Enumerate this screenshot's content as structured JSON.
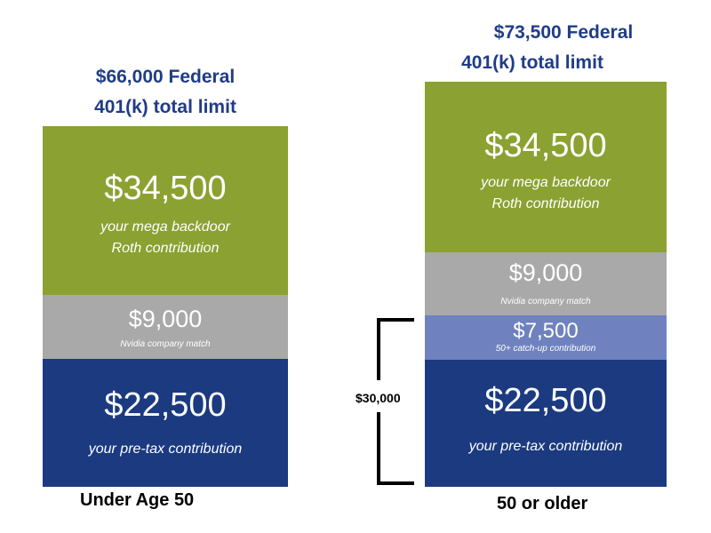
{
  "chart_data": [
    {
      "type": "bar",
      "stacked": true,
      "title_lines": [
        "$66,000 Federal",
        "401(k) total limit"
      ],
      "category": "Under Age 50",
      "segments": [
        {
          "value_label": "$22,500",
          "description": "your pre-tax contribution",
          "value": 22500,
          "color": "#1b3a80"
        },
        {
          "value_label": "$9,000",
          "description": "Nvidia company match",
          "value": 9000,
          "color": "#a9a9a9"
        },
        {
          "value_label": "$34,500",
          "description_lines": [
            "your mega backdoor",
            "Roth contribution"
          ],
          "value": 34500,
          "color": "#8ba131"
        }
      ]
    },
    {
      "type": "bar",
      "stacked": true,
      "title_lines": [
        "$73,500 Federal",
        "401(k) total limit"
      ],
      "category": "50 or older",
      "segments": [
        {
          "value_label": "$22,500",
          "description": "your pre-tax contribution",
          "value": 22500,
          "color": "#1b3a80"
        },
        {
          "value_label": "$7,500",
          "description": "50+ catch-up contribution",
          "value": 7500,
          "color": "#6f82bf"
        },
        {
          "value_label": "$9,000",
          "description": "Nvidia company match",
          "value": 9000,
          "color": "#a9a9a9"
        },
        {
          "value_label": "$34,500",
          "description_lines": [
            "your mega backdoor",
            "Roth contribution"
          ],
          "value": 34500,
          "color": "#8ba131"
        }
      ],
      "bracket_annotation": "$30,000"
    }
  ]
}
